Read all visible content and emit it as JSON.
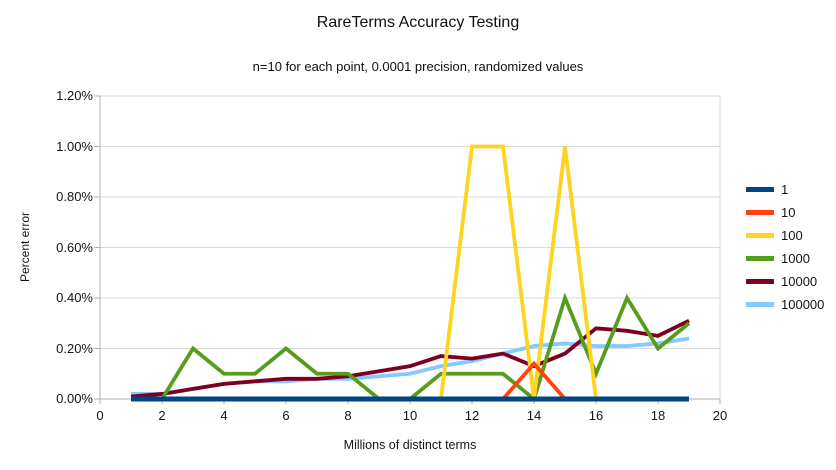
{
  "chart_data": {
    "type": "line",
    "title": "RareTerms Accuracy Testing",
    "subtitle": "n=10 for each point, 0.0001 precision, randomized values",
    "xlabel": "Millions of distinct terms",
    "ylabel": "Percent error",
    "xlim": [
      0,
      20
    ],
    "ylim": [
      0,
      1.2
    ],
    "grid": "horizontal-only",
    "legend_position": "right",
    "axis_color": "#b0b0b0",
    "grid_color": "#d9d9d9",
    "y_ticks": [
      {
        "value": 0.0,
        "label": "0.00%"
      },
      {
        "value": 0.2,
        "label": "0.20%"
      },
      {
        "value": 0.4,
        "label": "0.40%"
      },
      {
        "value": 0.6,
        "label": "0.60%"
      },
      {
        "value": 0.8,
        "label": "0.80%"
      },
      {
        "value": 1.0,
        "label": "1.00%"
      },
      {
        "value": 1.2,
        "label": "1.20%"
      }
    ],
    "x_ticks": [
      {
        "value": 0,
        "label": "0"
      },
      {
        "value": 2,
        "label": "2"
      },
      {
        "value": 4,
        "label": "4"
      },
      {
        "value": 6,
        "label": "6"
      },
      {
        "value": 8,
        "label": "8"
      },
      {
        "value": 10,
        "label": "10"
      },
      {
        "value": 12,
        "label": "12"
      },
      {
        "value": 14,
        "label": "14"
      },
      {
        "value": 16,
        "label": "16"
      },
      {
        "value": 18,
        "label": "18"
      },
      {
        "value": 20,
        "label": "20"
      }
    ],
    "x": [
      1,
      2,
      3,
      4,
      5,
      6,
      7,
      8,
      9,
      10,
      11,
      12,
      13,
      14,
      15,
      16,
      17,
      18,
      19
    ],
    "series": [
      {
        "name": "1",
        "color": "#004586",
        "stroke_width": 5,
        "values": [
          0,
          0,
          0,
          0,
          0,
          0,
          0,
          0,
          0,
          0,
          0,
          0,
          0,
          0,
          0,
          0,
          0,
          0,
          0
        ]
      },
      {
        "name": "10",
        "color": "#ff420e",
        "stroke_width": 3.8,
        "values": [
          0,
          0,
          0,
          0,
          0,
          0,
          0,
          0,
          0,
          0,
          0,
          0,
          0,
          0.14,
          0,
          0,
          0,
          0,
          0
        ]
      },
      {
        "name": "100",
        "color": "#ffd320",
        "stroke_width": 3.8,
        "values": [
          0,
          0,
          0,
          0,
          0,
          0,
          0,
          0,
          0,
          0,
          0,
          1.0,
          1.0,
          0,
          1.0,
          0,
          0,
          0,
          0
        ]
      },
      {
        "name": "1000",
        "color": "#579d1c",
        "stroke_width": 3.8,
        "values": [
          0,
          0,
          0.2,
          0.1,
          0.1,
          0.2,
          0.1,
          0.1,
          0,
          0,
          0.1,
          0.1,
          0.1,
          0,
          0.4,
          0.1,
          0.4,
          0.2,
          0.3
        ]
      },
      {
        "name": "10000",
        "color": "#7e0021",
        "stroke_width": 3.8,
        "values": [
          0.01,
          0.02,
          0.04,
          0.06,
          0.07,
          0.08,
          0.08,
          0.09,
          0.11,
          0.13,
          0.17,
          0.16,
          0.18,
          0.13,
          0.18,
          0.28,
          0.27,
          0.25,
          0.31
        ]
      },
      {
        "name": "100000",
        "color": "#83caff",
        "stroke_width": 3.8,
        "values": [
          0.02,
          0.02,
          0.04,
          0.06,
          0.07,
          0.07,
          0.08,
          0.08,
          0.09,
          0.1,
          0.13,
          0.15,
          0.18,
          0.21,
          0.22,
          0.21,
          0.21,
          0.22,
          0.24
        ]
      }
    ],
    "draw_order": [
      "100000",
      "10000",
      "1000",
      "100",
      "10",
      "1"
    ]
  }
}
